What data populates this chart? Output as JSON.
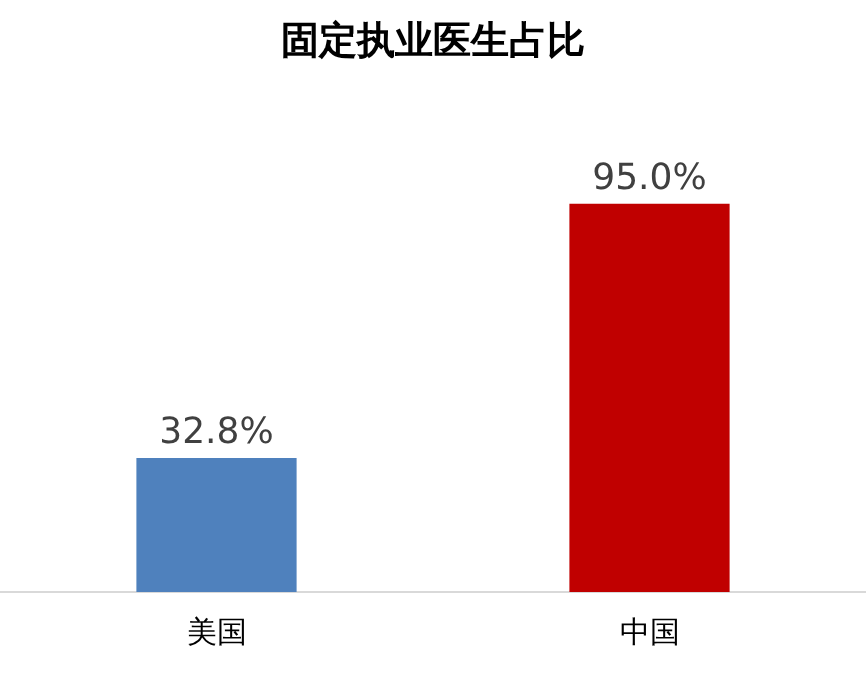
{
  "chart_data": {
    "type": "bar",
    "title": "固定执业医生占比",
    "categories": [
      "美国",
      "中国"
    ],
    "values": [
      32.8,
      95.0
    ],
    "colors": [
      "#4f81bd",
      "#c00000"
    ],
    "value_labels": [
      "32.8%",
      "95.0%"
    ],
    "grid": false,
    "legend": false,
    "tick_labels": "x"
  }
}
